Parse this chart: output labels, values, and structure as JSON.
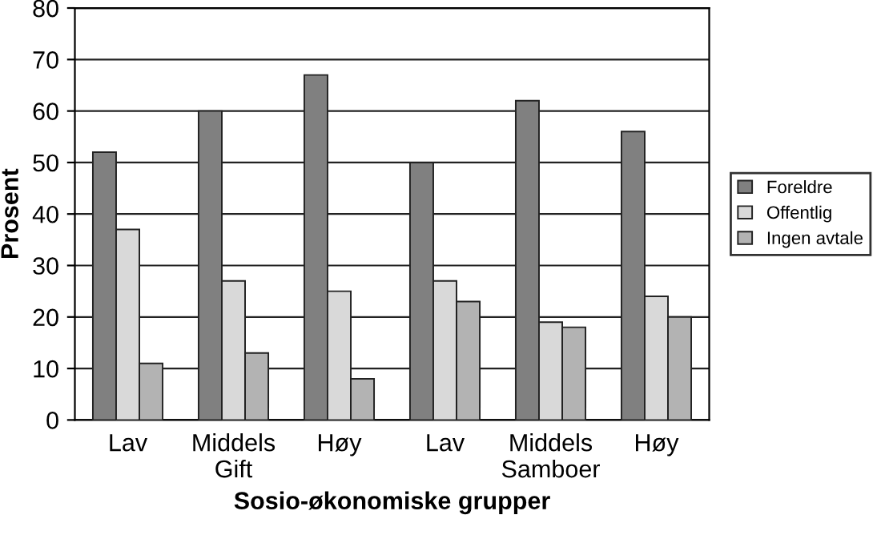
{
  "chart_data": {
    "type": "bar",
    "xlabel": "Sosio-økonomiske grupper",
    "ylabel": "Prosent",
    "categories": [
      "Lav",
      "Middels\nGift",
      "Høy",
      "Lav",
      "Middels\nSamboer",
      "Høy"
    ],
    "series": [
      {
        "name": "Foreldre",
        "color": "#808080",
        "values": [
          52,
          60,
          67,
          50,
          62,
          56
        ]
      },
      {
        "name": "Offentlig",
        "color": "#d9d9d9",
        "values": [
          37,
          27,
          25,
          27,
          19,
          24
        ]
      },
      {
        "name": "Ingen avtale",
        "color": "#b3b3b3",
        "values": [
          11,
          13,
          8,
          23,
          18,
          20
        ]
      }
    ],
    "ylim": [
      0,
      80
    ],
    "yticks": [
      0,
      10,
      20,
      30,
      40,
      50,
      60,
      70,
      80
    ],
    "grid": "y",
    "legend": "right"
  }
}
